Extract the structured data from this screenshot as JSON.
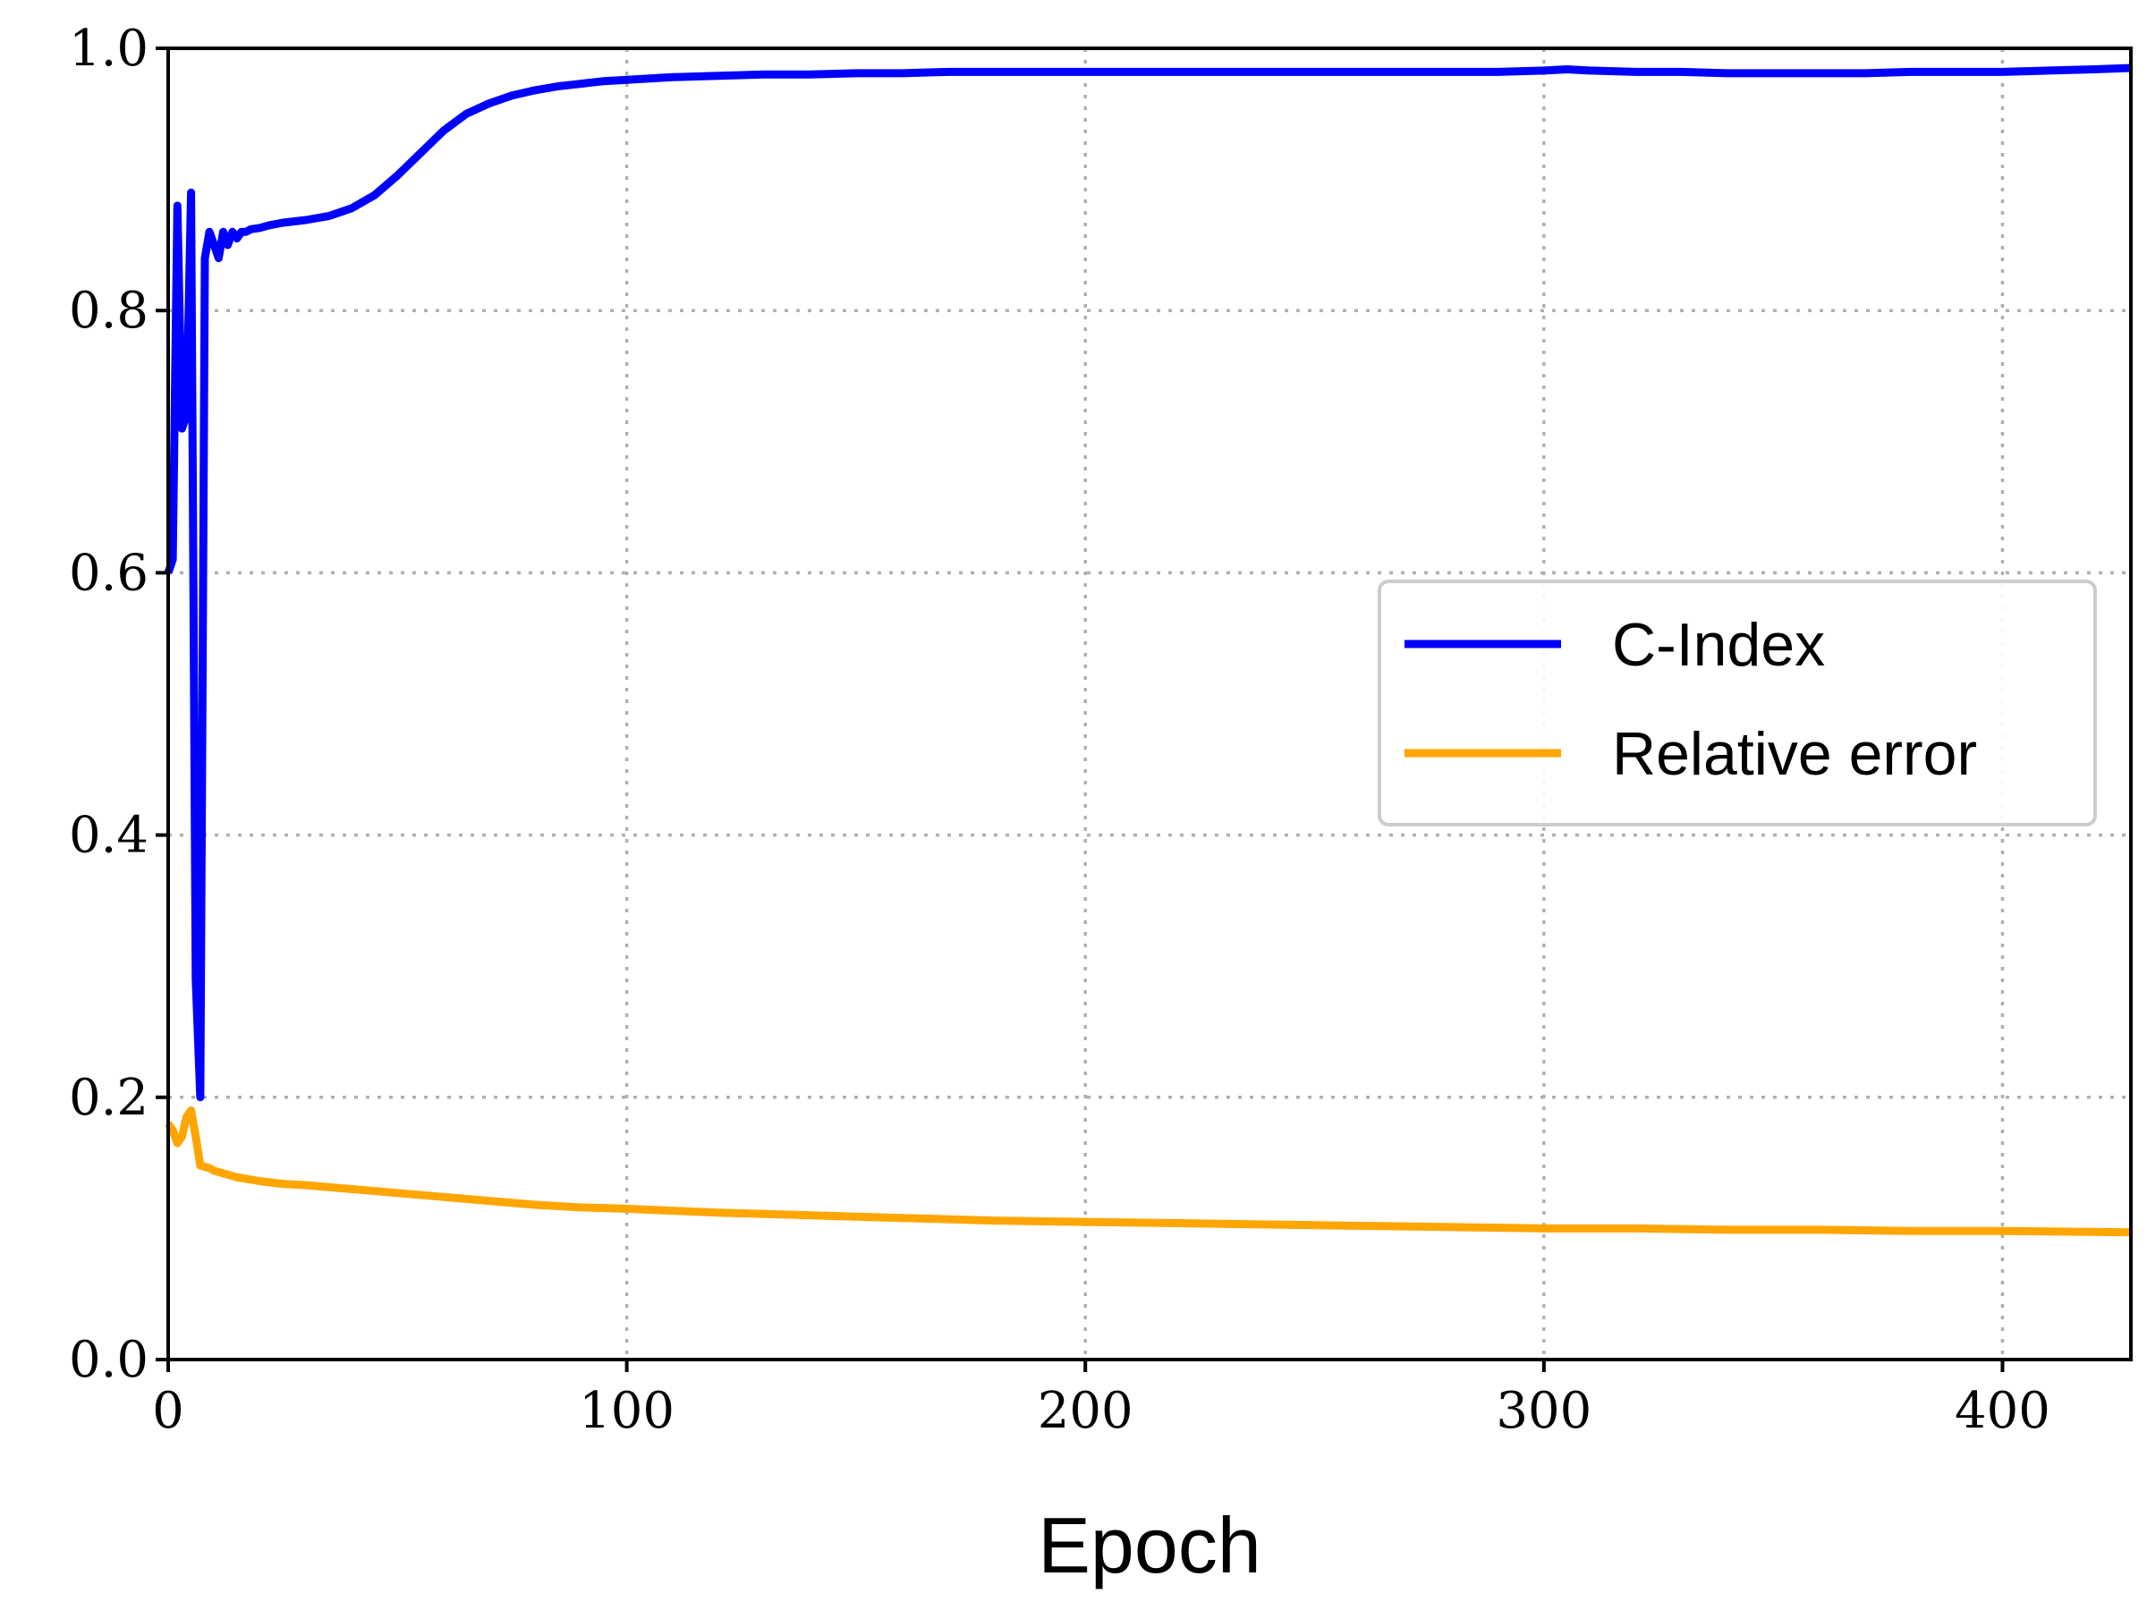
{
  "chart_data": {
    "type": "line",
    "title": "",
    "xlabel": "Epoch",
    "ylabel": "",
    "xlim": [
      0,
      428
    ],
    "ylim": [
      0.0,
      1.0
    ],
    "xticks": [
      0,
      100,
      200,
      300,
      400
    ],
    "xtick_labels": [
      "0",
      "100",
      "200",
      "300",
      "400"
    ],
    "yticks": [
      0.0,
      0.2,
      0.4,
      0.6,
      0.8,
      1.0
    ],
    "ytick_labels": [
      "0.0",
      "0.2",
      "0.4",
      "0.6",
      "0.8",
      "1.0"
    ],
    "grid": true,
    "legend_position": "center-right",
    "series": [
      {
        "name": "C-Index",
        "color": "#0000ff",
        "x": [
          0,
          1,
          2,
          3,
          4,
          5,
          6,
          7,
          8,
          9,
          10,
          11,
          12,
          13,
          14,
          15,
          16,
          17,
          18,
          20,
          22,
          25,
          30,
          35,
          40,
          45,
          50,
          55,
          60,
          65,
          70,
          75,
          80,
          85,
          90,
          95,
          100,
          110,
          120,
          130,
          140,
          150,
          160,
          170,
          180,
          190,
          200,
          210,
          220,
          230,
          240,
          250,
          260,
          270,
          280,
          290,
          300,
          305,
          310,
          320,
          330,
          340,
          350,
          360,
          370,
          380,
          390,
          400,
          410,
          420,
          428
        ],
        "y": [
          0.6,
          0.61,
          0.88,
          0.71,
          0.72,
          0.89,
          0.29,
          0.2,
          0.84,
          0.86,
          0.85,
          0.84,
          0.86,
          0.85,
          0.86,
          0.855,
          0.86,
          0.86,
          0.862,
          0.863,
          0.865,
          0.867,
          0.869,
          0.872,
          0.878,
          0.888,
          0.903,
          0.92,
          0.937,
          0.95,
          0.958,
          0.964,
          0.968,
          0.971,
          0.973,
          0.975,
          0.976,
          0.978,
          0.979,
          0.98,
          0.98,
          0.981,
          0.981,
          0.982,
          0.982,
          0.982,
          0.982,
          0.982,
          0.982,
          0.982,
          0.982,
          0.982,
          0.982,
          0.982,
          0.982,
          0.982,
          0.983,
          0.984,
          0.983,
          0.982,
          0.982,
          0.981,
          0.981,
          0.981,
          0.981,
          0.982,
          0.982,
          0.982,
          0.983,
          0.984,
          0.985
        ]
      },
      {
        "name": "Relative error",
        "color": "#ffa500",
        "x": [
          0,
          1,
          2,
          3,
          4,
          5,
          6,
          7,
          8,
          9,
          10,
          12,
          15,
          20,
          25,
          30,
          40,
          50,
          60,
          70,
          80,
          90,
          100,
          120,
          140,
          160,
          180,
          200,
          220,
          240,
          260,
          280,
          300,
          320,
          340,
          360,
          380,
          400,
          428
        ],
        "y": [
          0.18,
          0.175,
          0.165,
          0.17,
          0.185,
          0.19,
          0.17,
          0.148,
          0.147,
          0.146,
          0.144,
          0.142,
          0.139,
          0.136,
          0.134,
          0.133,
          0.13,
          0.127,
          0.124,
          0.121,
          0.118,
          0.116,
          0.115,
          0.112,
          0.11,
          0.108,
          0.106,
          0.105,
          0.104,
          0.103,
          0.102,
          0.101,
          0.1,
          0.1,
          0.099,
          0.099,
          0.098,
          0.098,
          0.097
        ]
      }
    ]
  }
}
